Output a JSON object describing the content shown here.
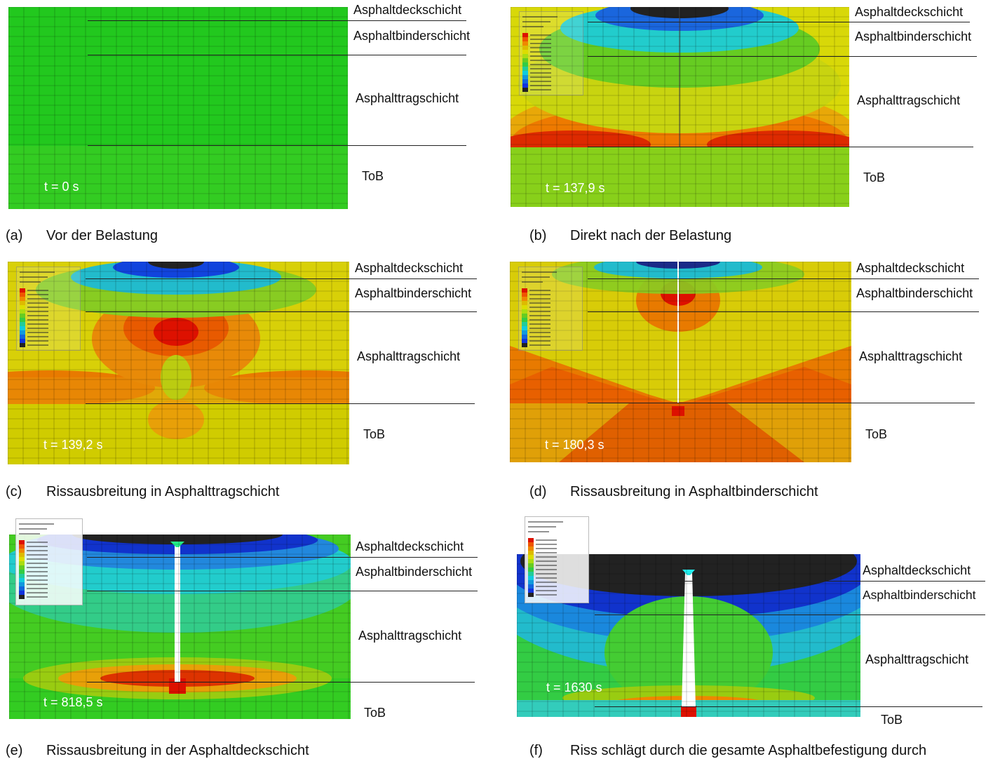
{
  "layers": {
    "deck": "Asphaltdeckschicht",
    "binder": "Asphaltbinderschicht",
    "trag": "Asphalttragschicht",
    "tob": "ToB"
  },
  "panels": [
    {
      "tag": "(a)",
      "caption": "Vor der Belastung",
      "time": "t = 0 s"
    },
    {
      "tag": "(b)",
      "caption": "Direkt nach der Belastung",
      "time": "t = 137,9 s"
    },
    {
      "tag": "(c)",
      "caption": "Rissausbreitung in Asphalttragschicht",
      "time": "t = 139,2 s"
    },
    {
      "tag": "(d)",
      "caption": "Rissausbreitung in Asphaltbinderschicht",
      "time": "t = 180,3 s"
    },
    {
      "tag": "(e)",
      "caption": "Rissausbreitung in der Asphaltdeckschicht",
      "time": "t = 818,5 s"
    },
    {
      "tag": "(f)",
      "caption": "Riss schlägt durch die gesamte Asphaltbefestigung durch",
      "time": "t = 1630 s"
    }
  ],
  "colors": {
    "green": "#33cc22",
    "yellowgreen": "#aadd11",
    "yellow": "#dddd00",
    "orange": "#ee8800",
    "red": "#dd1100",
    "blue": "#1133dd",
    "cyan": "#11ccdd",
    "black": "#222222"
  }
}
